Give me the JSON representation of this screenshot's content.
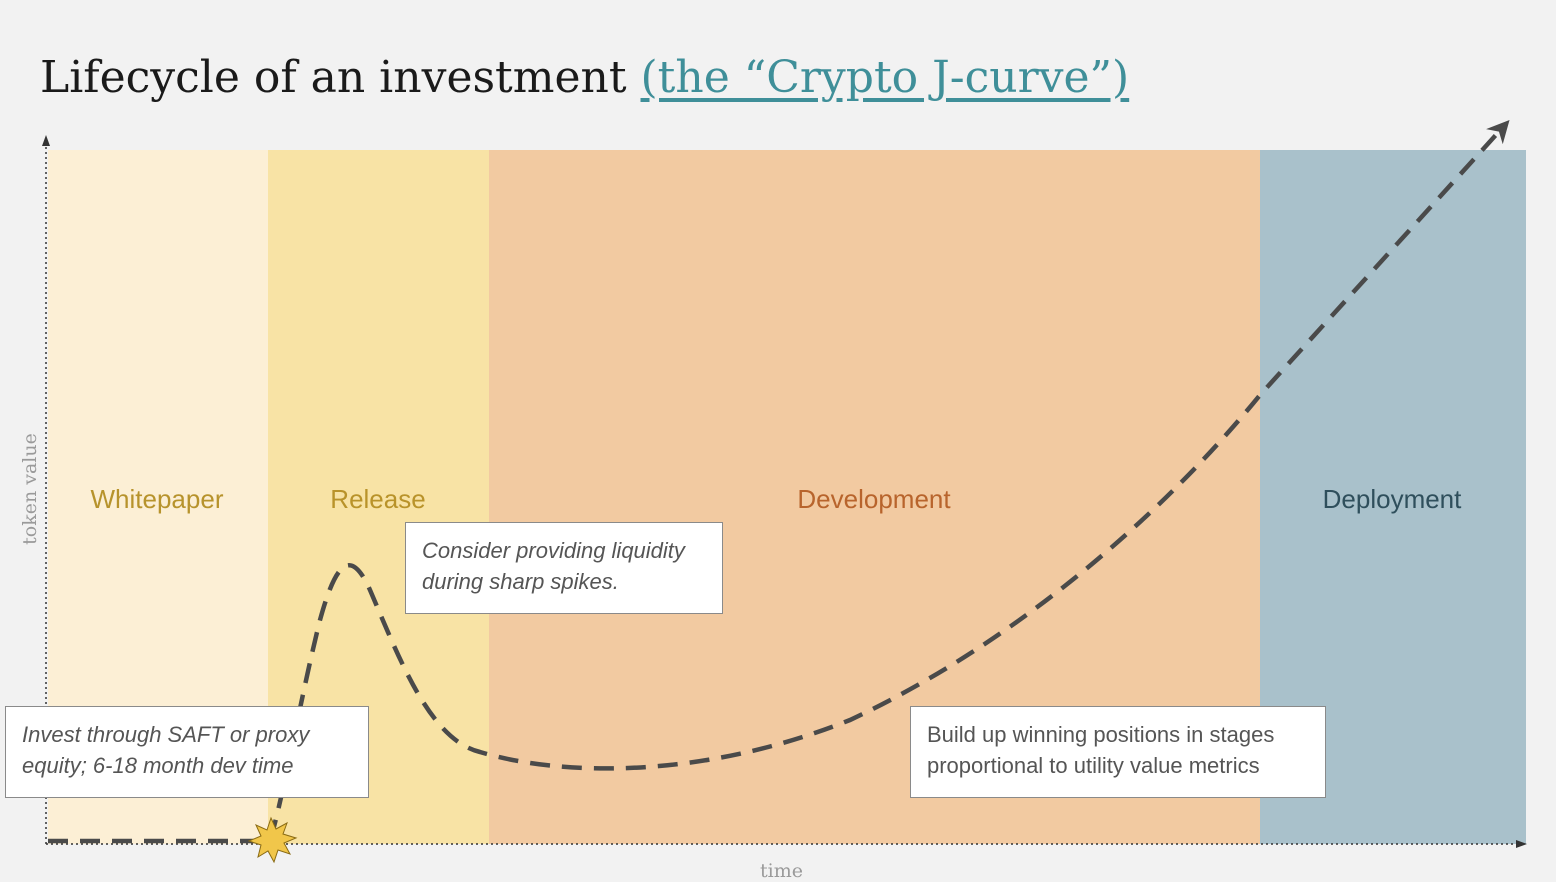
{
  "title": {
    "main": "Lifecycle of an investment ",
    "link": "(the “Crypto J-curve”)",
    "link_color": "#3f8f99"
  },
  "axes": {
    "y_label": "token value",
    "x_label": "time"
  },
  "phases": [
    {
      "name": "Whitepaper",
      "fill": "#fcefd5",
      "text_color": "#b7932c"
    },
    {
      "name": "Release",
      "fill": "#f8e3a5",
      "text_color": "#b9932a"
    },
    {
      "name": "Development",
      "fill": "#f2caa1",
      "text_color": "#b8642c"
    },
    {
      "name": "Deployment",
      "fill": "#a9c1cb",
      "text_color": "#2f4f5c"
    }
  ],
  "notes": {
    "invest": "Invest through SAFT or proxy equity; 6-18 month dev time",
    "liquidity": "Consider providing liquidity during sharp spikes.",
    "build": "Build up winning positions in stages proportional to utility value metrics"
  },
  "curve": {
    "stroke": "#4a4a4a",
    "style": "dashed",
    "arrow_end": true
  },
  "launch_marker": {
    "fill": "#f1c64a",
    "icon": "starburst-icon"
  }
}
